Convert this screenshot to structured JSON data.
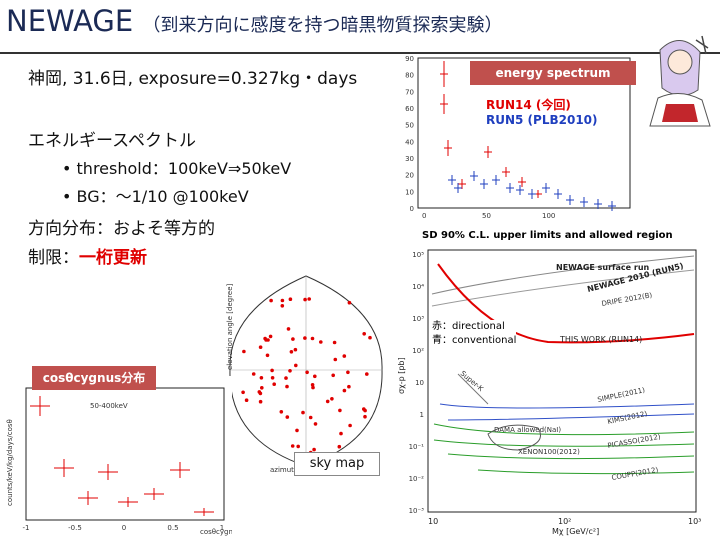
{
  "slide": {
    "title_main": "NEWAGE",
    "title_sub": "（到来方向に感度を持つ暗黒物質探索実験）",
    "run_info": "神岡, 31.6日, exposure=0.327kg・days",
    "spectrum_heading": "エネルギースペクトル",
    "bullets": [
      "threshold：100keV⇒50keV",
      "BG：〜1/10 @100keV"
    ],
    "direction_line": "方向分布：およそ等方的",
    "limit_prefix": "制限：",
    "limit_value": "一桁更新"
  },
  "energy_spectrum": {
    "label": "energy spectrum",
    "label_bg": "#c0504d",
    "legend_run14": "RUN14 (今回)",
    "legend_run5": "RUN5 (PLB2010)",
    "run14_color": "#e00000",
    "run5_color": "#1f3fbf",
    "y_ticks": [
      "90",
      "80",
      "70",
      "60",
      "50",
      "40",
      "30",
      "20",
      "10",
      "0"
    ],
    "x_ticks": [
      "0",
      "50",
      "100"
    ]
  },
  "sd_limit": {
    "header": "SD 90% C.L. upper limits and allowed region",
    "legend_directional": "赤：directional",
    "legend_conventional": "青：conventional",
    "y_ticks": [
      "10⁵",
      "10⁴",
      "10³",
      "10²",
      "10",
      "1",
      "10⁻¹",
      "10⁻²",
      "10⁻³"
    ],
    "x_ticks": [
      "10",
      "10²",
      "10³"
    ],
    "ylabel": "σχ-p [pb]",
    "xlabel": "Mχ [GeV/c²]",
    "labels": {
      "surface": "NEWAGE surface run",
      "run5": "NEWAGE 2010 (RUN5)",
      "dripe": "DRIPE 2012(B)",
      "this_work": "THIS WORK (RUN14)",
      "dama": "DAMA allowed(NaI)",
      "super_k": "Super-K",
      "simple": "SIMPLE(2011)",
      "kims": "KIMS(2012)",
      "xenon": "XENON100(2012)",
      "coupp": "COUPP(2012)",
      "picasso": "PICASSO(2012)"
    }
  },
  "sky_map": {
    "label": "sky map",
    "ylabel": "elevation angle [degree]",
    "xlabel": "azimuth angle [degree]"
  },
  "cos_plot": {
    "label": "cosθcygnus分布",
    "label_bg": "#c0504d",
    "energy_range": "50-400keV",
    "ylabel": "counts/keV/kg/days/cosθ",
    "xlabel": "cosθcygnus",
    "x_ticks": [
      "-1",
      "-0.5",
      "0",
      "0.5",
      "1"
    ]
  }
}
